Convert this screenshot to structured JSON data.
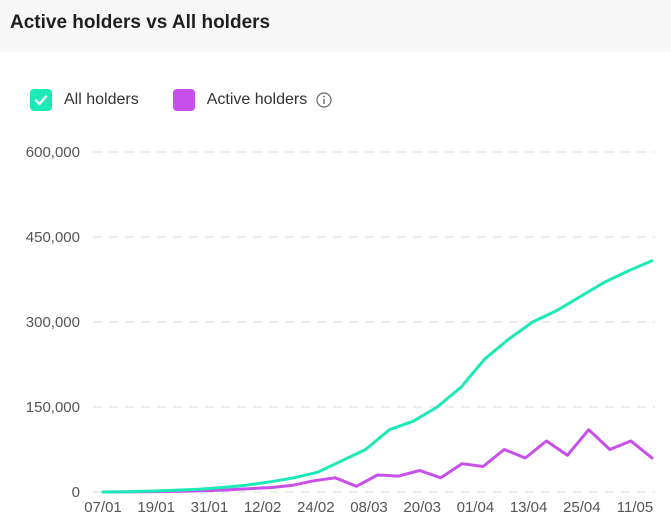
{
  "header": {
    "title": "Active holders vs All holders"
  },
  "legend": [
    {
      "label": "All holders",
      "color": "#1de9b6",
      "checked": true,
      "icon": "check-icon"
    },
    {
      "label": "Active holders",
      "color": "#c84fea",
      "checked": false,
      "info_icon": "info-icon"
    }
  ],
  "chart_data": {
    "type": "line",
    "x_tick_labels": [
      "07/01",
      "19/01",
      "31/01",
      "12/02",
      "24/02",
      "08/03",
      "20/03",
      "01/04",
      "13/04",
      "25/04",
      "11/05"
    ],
    "y_tick_labels": [
      "0",
      "150,000",
      "300,000",
      "450,000",
      "600,000"
    ],
    "y_ticks": [
      0,
      150000,
      300000,
      450000,
      600000
    ],
    "ylim": [
      0,
      600000
    ],
    "grid": true,
    "legend_position": "top-left",
    "series": [
      {
        "name": "All holders",
        "color": "#1de9b6",
        "values": [
          0,
          500,
          1500,
          3000,
          5000,
          8000,
          12000,
          18000,
          25000,
          35000,
          55000,
          75000,
          110000,
          125000,
          150000,
          185000,
          235000,
          270000,
          300000,
          320000,
          345000,
          370000,
          390000,
          408000
        ]
      },
      {
        "name": "Active holders",
        "color": "#c84fea",
        "values": [
          0,
          200,
          400,
          800,
          1500,
          2500,
          4000,
          6000,
          8000,
          12000,
          20000,
          25000,
          10000,
          30000,
          28000,
          38000,
          25000,
          50000,
          45000,
          75000,
          60000,
          90000,
          65000,
          110000,
          75000,
          90000,
          60000
        ]
      }
    ]
  }
}
